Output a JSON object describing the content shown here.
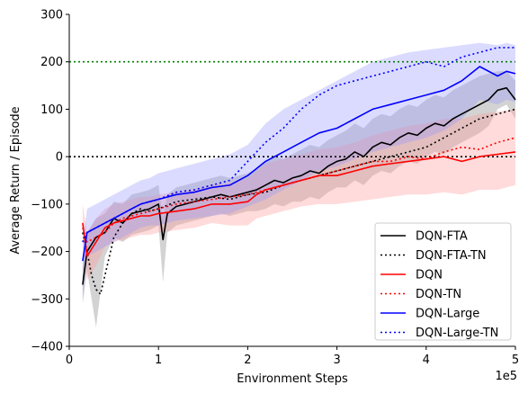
{
  "chart_data": {
    "type": "line",
    "xlabel": "Environment Steps",
    "ylabel": "Average Return / Episode",
    "x_offset_label": "1e5",
    "xlim": [
      0,
      5
    ],
    "ylim": [
      -400,
      300
    ],
    "x_ticks": [
      0,
      1,
      2,
      3,
      4,
      5
    ],
    "x_tick_labels": [
      "0",
      "1",
      "2",
      "3",
      "4",
      "5"
    ],
    "y_ticks": [
      -400,
      -300,
      -200,
      -100,
      0,
      100,
      200,
      300
    ],
    "y_tick_labels": [
      "−400",
      "−300",
      "−200",
      "−100",
      "0",
      "100",
      "200",
      "300"
    ],
    "grid": false,
    "legend_position": "lower-right",
    "reference_lines": [
      {
        "y": 200,
        "color": "#008000",
        "style": "dotted"
      },
      {
        "y": 0,
        "color": "#000000",
        "style": "dotted"
      }
    ],
    "series": [
      {
        "name": "DQN-FTA",
        "color": "#000000",
        "style": "solid",
        "band_color": "#808080",
        "x": [
          0.15,
          0.2,
          0.3,
          0.4,
          0.5,
          0.6,
          0.7,
          0.8,
          0.9,
          1.0,
          1.05,
          1.1,
          1.2,
          1.3,
          1.4,
          1.5,
          1.6,
          1.7,
          1.8,
          1.9,
          2.0,
          2.1,
          2.2,
          2.3,
          2.4,
          2.5,
          2.6,
          2.7,
          2.8,
          2.9,
          3.0,
          3.1,
          3.2,
          3.3,
          3.4,
          3.5,
          3.6,
          3.7,
          3.8,
          3.9,
          4.0,
          4.1,
          4.2,
          4.3,
          4.4,
          4.5,
          4.6,
          4.7,
          4.8,
          4.9,
          5.0
        ],
        "y": [
          -270,
          -200,
          -170,
          -160,
          -130,
          -140,
          -120,
          -115,
          -110,
          -100,
          -175,
          -120,
          -105,
          -100,
          -95,
          -90,
          -85,
          -80,
          -85,
          -80,
          -75,
          -70,
          -60,
          -50,
          -55,
          -45,
          -40,
          -30,
          -35,
          -20,
          -10,
          -5,
          10,
          0,
          20,
          30,
          25,
          40,
          50,
          45,
          60,
          70,
          65,
          80,
          90,
          100,
          110,
          120,
          140,
          145,
          120
        ],
        "upper": [
          -230,
          -160,
          -130,
          -120,
          -95,
          -100,
          -80,
          -75,
          -70,
          -60,
          -130,
          -80,
          -65,
          -60,
          -55,
          -50,
          -45,
          -40,
          -45,
          -40,
          -35,
          -25,
          -10,
          0,
          -5,
          5,
          15,
          25,
          20,
          35,
          45,
          55,
          70,
          60,
          80,
          90,
          85,
          100,
          110,
          105,
          120,
          130,
          125,
          140,
          150,
          160,
          170,
          175,
          180,
          180,
          160
        ],
        "lower": [
          -310,
          -240,
          -360,
          -210,
          -170,
          -180,
          -165,
          -160,
          -155,
          -145,
          -265,
          -160,
          -145,
          -140,
          -135,
          -130,
          -125,
          -120,
          -125,
          -120,
          -115,
          -115,
          -110,
          -100,
          -105,
          -95,
          -95,
          -85,
          -90,
          -75,
          -65,
          -65,
          -50,
          -60,
          -40,
          -30,
          -35,
          -20,
          -10,
          -15,
          0,
          10,
          5,
          20,
          30,
          40,
          50,
          65,
          100,
          110,
          80
        ]
      },
      {
        "name": "DQN-FTA-TN",
        "color": "#000000",
        "style": "dotted",
        "x": [
          0.15,
          0.2,
          0.25,
          0.3,
          0.35,
          0.4,
          0.5,
          0.6,
          0.7,
          0.8,
          0.9,
          1.0,
          1.2,
          1.4,
          1.6,
          1.8,
          2.0,
          2.2,
          2.4,
          2.6,
          2.8,
          3.0,
          3.2,
          3.4,
          3.6,
          3.8,
          4.0,
          4.2,
          4.4,
          4.6,
          4.8,
          5.0
        ],
        "y": [
          -160,
          -200,
          -250,
          -280,
          -290,
          -250,
          -170,
          -140,
          -120,
          -110,
          -115,
          -110,
          -95,
          -90,
          -85,
          -90,
          -80,
          -75,
          -60,
          -50,
          -40,
          -30,
          -20,
          -10,
          0,
          10,
          20,
          40,
          60,
          80,
          90,
          100
        ]
      },
      {
        "name": "DQN",
        "color": "#ff0000",
        "style": "solid",
        "band_color": "#ff9999",
        "x": [
          0.15,
          0.2,
          0.3,
          0.4,
          0.5,
          0.6,
          0.7,
          0.8,
          0.9,
          1.0,
          1.2,
          1.4,
          1.6,
          1.8,
          2.0,
          2.1,
          2.2,
          2.4,
          2.6,
          2.8,
          3.0,
          3.2,
          3.4,
          3.6,
          3.8,
          4.0,
          4.2,
          4.4,
          4.6,
          4.8,
          5.0
        ],
        "y": [
          -140,
          -210,
          -180,
          -150,
          -140,
          -135,
          -130,
          -125,
          -125,
          -120,
          -115,
          -110,
          -100,
          -100,
          -95,
          -80,
          -70,
          -60,
          -50,
          -40,
          -40,
          -30,
          -20,
          -15,
          -10,
          -5,
          0,
          -10,
          0,
          5,
          10
        ],
        "upper": [
          -100,
          -160,
          -130,
          -110,
          -100,
          -95,
          -90,
          -85,
          -85,
          -80,
          -75,
          -70,
          -60,
          -55,
          -45,
          -30,
          -15,
          -5,
          5,
          15,
          20,
          30,
          45,
          55,
          65,
          70,
          80,
          80,
          90,
          95,
          100
        ],
        "lower": [
          -180,
          -260,
          -230,
          -190,
          -180,
          -175,
          -170,
          -165,
          -165,
          -160,
          -155,
          -150,
          -140,
          -145,
          -145,
          -130,
          -125,
          -115,
          -105,
          -100,
          -100,
          -95,
          -90,
          -85,
          -80,
          -80,
          -75,
          -80,
          -70,
          -70,
          -60
        ]
      },
      {
        "name": "DQN-TN",
        "color": "#ff0000",
        "style": "dotted",
        "x": [
          0.15,
          0.2,
          0.3,
          0.4,
          0.5,
          0.6,
          0.8,
          1.0,
          1.2,
          1.4,
          1.6,
          1.8,
          2.0,
          2.2,
          2.4,
          2.6,
          2.8,
          3.0,
          3.2,
          3.4,
          3.6,
          3.8,
          4.0,
          4.2,
          4.4,
          4.6,
          4.8,
          5.0
        ],
        "y": [
          -150,
          -180,
          -170,
          -160,
          -140,
          -130,
          -120,
          -110,
          -100,
          -95,
          -90,
          -85,
          -80,
          -70,
          -60,
          -50,
          -40,
          -30,
          -20,
          -10,
          -10,
          0,
          -5,
          10,
          20,
          15,
          30,
          40
        ]
      },
      {
        "name": "DQN-Large",
        "color": "#0000ff",
        "style": "solid",
        "band_color": "#9999ff",
        "x": [
          0.15,
          0.2,
          0.3,
          0.4,
          0.5,
          0.6,
          0.7,
          0.8,
          0.9,
          1.0,
          1.2,
          1.4,
          1.6,
          1.8,
          2.0,
          2.2,
          2.4,
          2.6,
          2.8,
          3.0,
          3.2,
          3.4,
          3.6,
          3.8,
          4.0,
          4.2,
          4.4,
          4.6,
          4.8,
          4.9,
          5.0
        ],
        "y": [
          -220,
          -160,
          -150,
          -140,
          -130,
          -120,
          -110,
          -100,
          -95,
          -90,
          -80,
          -75,
          -65,
          -60,
          -40,
          -10,
          10,
          30,
          50,
          60,
          80,
          100,
          110,
          120,
          130,
          140,
          160,
          190,
          170,
          180,
          175
        ],
        "upper": [
          -180,
          -110,
          -100,
          -90,
          -80,
          -70,
          -60,
          -50,
          -45,
          -35,
          -25,
          -15,
          -5,
          5,
          25,
          70,
          100,
          120,
          140,
          160,
          180,
          200,
          210,
          220,
          225,
          230,
          235,
          240,
          235,
          240,
          235
        ],
        "lower": [
          -300,
          -210,
          -200,
          -190,
          -180,
          -170,
          -160,
          -150,
          -145,
          -145,
          -135,
          -130,
          -125,
          -120,
          -105,
          -90,
          -70,
          -50,
          -30,
          -20,
          -5,
          10,
          20,
          30,
          40,
          55,
          80,
          120,
          110,
          120,
          115
        ]
      },
      {
        "name": "DQN-Large-TN",
        "color": "#0000ff",
        "style": "dotted",
        "x": [
          0.15,
          0.2,
          0.3,
          0.4,
          0.5,
          0.6,
          0.8,
          1.0,
          1.2,
          1.4,
          1.6,
          1.8,
          2.0,
          2.2,
          2.4,
          2.6,
          2.8,
          3.0,
          3.2,
          3.4,
          3.6,
          3.8,
          4.0,
          4.2,
          4.4,
          4.6,
          4.8,
          5.0
        ],
        "y": [
          -180,
          -160,
          -150,
          -140,
          -130,
          -120,
          -100,
          -90,
          -75,
          -70,
          -60,
          -50,
          -10,
          30,
          60,
          100,
          130,
          150,
          160,
          170,
          180,
          190,
          200,
          190,
          210,
          220,
          230,
          230
        ]
      }
    ]
  }
}
